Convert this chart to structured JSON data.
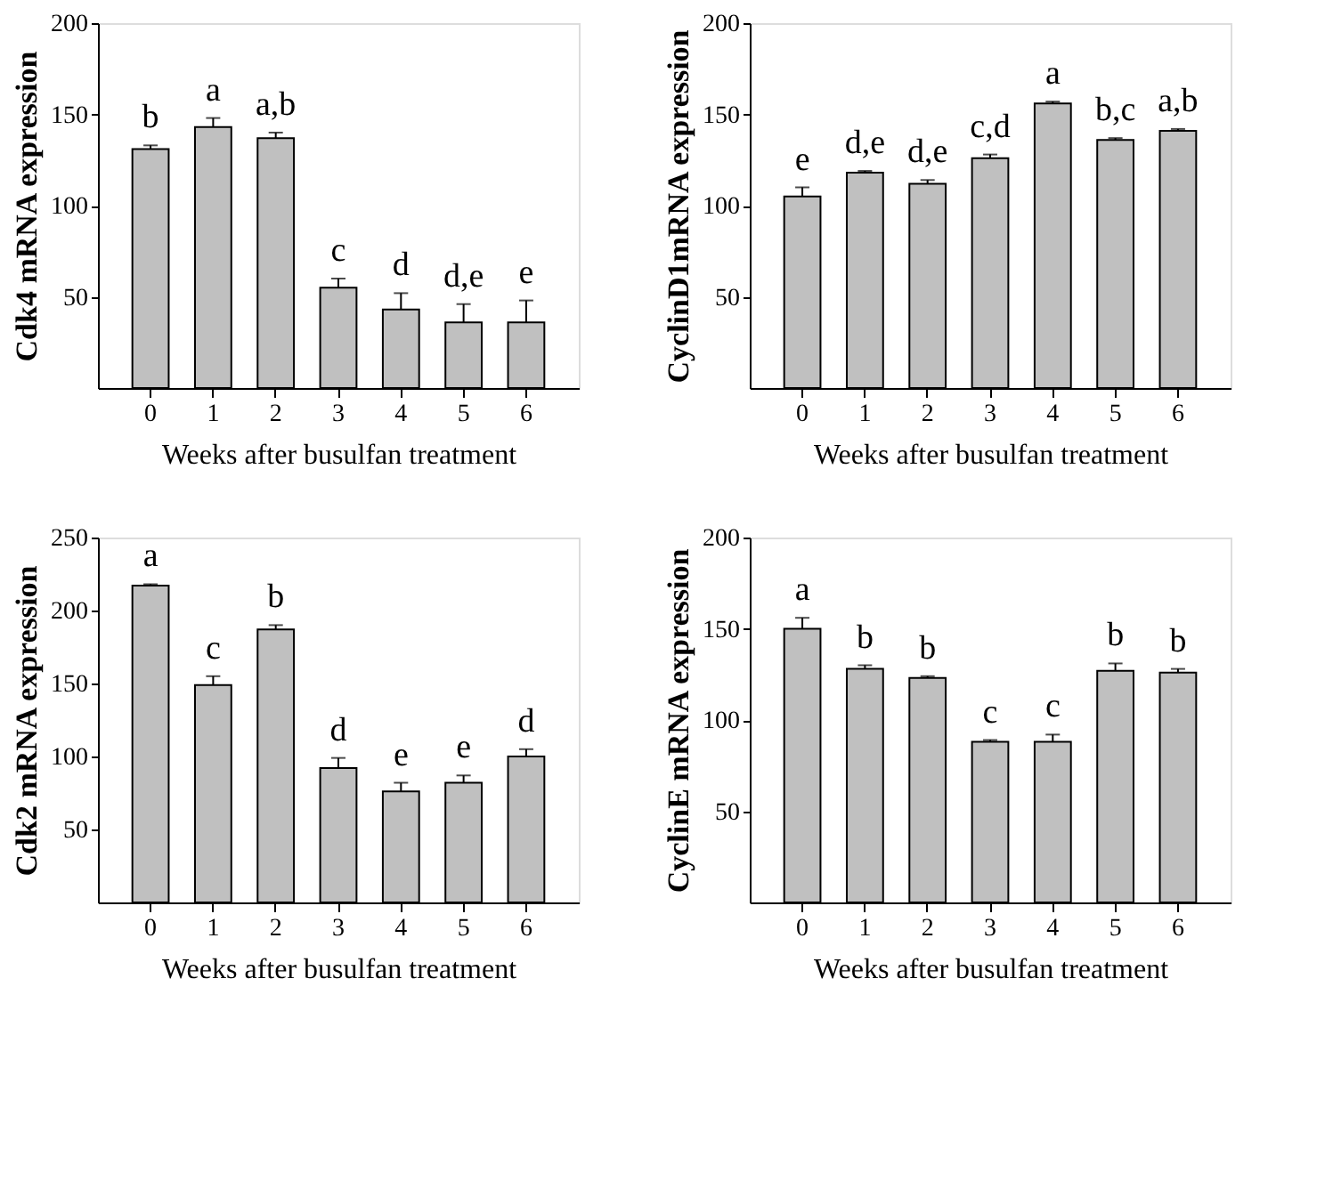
{
  "chart_data": [
    {
      "type": "bar",
      "xlabel": "Weeks after busulfan treatment",
      "ylabel": "Cdk4 mRNA expression",
      "categories": [
        "0",
        "1",
        "2",
        "3",
        "4",
        "5",
        "6"
      ],
      "values": [
        131,
        143,
        137,
        55,
        43,
        36,
        36
      ],
      "color": "#c0c0c0",
      "errors": [
        [
          131,
          133
        ],
        [
          143,
          148
        ],
        [
          137,
          140
        ],
        [
          55,
          60
        ],
        [
          43,
          52
        ],
        [
          36,
          46
        ],
        [
          36,
          48
        ]
      ],
      "ylim": [
        0,
        200
      ],
      "yticks": [
        50,
        100,
        150,
        200
      ],
      "grid": false,
      "annotations": [
        {
          "text": "b",
          "x": "0",
          "y": 133
        },
        {
          "text": "a",
          "x": "1",
          "y": 148
        },
        {
          "text": "a,b",
          "x": "2",
          "y": 140
        },
        {
          "text": "c",
          "x": "3",
          "y": 60
        },
        {
          "text": "d",
          "x": "4",
          "y": 52
        },
        {
          "text": "d,e",
          "x": "5",
          "y": 46
        },
        {
          "text": "e",
          "x": "6",
          "y": 48
        }
      ]
    },
    {
      "type": "bar",
      "xlabel": "Weeks after busulfan treatment",
      "ylabel": "CyclinD1mRNA expression",
      "categories": [
        "0",
        "1",
        "2",
        "3",
        "4",
        "5",
        "6"
      ],
      "values": [
        105,
        118,
        112,
        126,
        156,
        136,
        141
      ],
      "color": "#c0c0c0",
      "errors": [
        [
          105,
          110
        ],
        [
          118,
          119
        ],
        [
          112,
          114
        ],
        [
          126,
          128
        ],
        [
          156,
          157
        ],
        [
          136,
          137
        ],
        [
          141,
          142
        ]
      ],
      "ylim": [
        0,
        200
      ],
      "yticks": [
        50,
        100,
        150,
        200
      ],
      "grid": false,
      "annotations": [
        {
          "text": "e",
          "x": "0",
          "y": 110
        },
        {
          "text": "d,e",
          "x": "1",
          "y": 119
        },
        {
          "text": "d,e",
          "x": "2",
          "y": 114
        },
        {
          "text": "c,d",
          "x": "3",
          "y": 128
        },
        {
          "text": "a",
          "x": "4",
          "y": 157
        },
        {
          "text": "b,c",
          "x": "5",
          "y": 137
        },
        {
          "text": "a,b",
          "x": "6",
          "y": 142
        }
      ]
    },
    {
      "type": "bar",
      "xlabel": "Weeks after busulfan treatment",
      "ylabel": "Cdk2 mRNA expression",
      "categories": [
        "0",
        "1",
        "2",
        "3",
        "4",
        "5",
        "6"
      ],
      "values": [
        217,
        149,
        187,
        92,
        76,
        82,
        100
      ],
      "color": "#c0c0c0",
      "errors": [
        [
          217,
          218
        ],
        [
          149,
          155
        ],
        [
          187,
          190
        ],
        [
          92,
          99
        ],
        [
          76,
          82
        ],
        [
          82,
          87
        ],
        [
          100,
          105
        ]
      ],
      "ylim": [
        0,
        250
      ],
      "yticks": [
        50,
        100,
        150,
        200,
        250
      ],
      "grid": false,
      "annotations": [
        {
          "text": "a",
          "x": "0",
          "y": 218
        },
        {
          "text": "c",
          "x": "1",
          "y": 155
        },
        {
          "text": "b",
          "x": "2",
          "y": 190
        },
        {
          "text": "d",
          "x": "3",
          "y": 99
        },
        {
          "text": "e",
          "x": "4",
          "y": 82
        },
        {
          "text": "e",
          "x": "5",
          "y": 87
        },
        {
          "text": "d",
          "x": "6",
          "y": 105
        }
      ]
    },
    {
      "type": "bar",
      "xlabel": "Weeks after busulfan treatment",
      "ylabel": "CyclinE mRNA expression",
      "categories": [
        "0",
        "1",
        "2",
        "3",
        "4",
        "5",
        "6"
      ],
      "values": [
        150,
        128,
        123,
        88,
        88,
        127,
        126
      ],
      "color": "#c0c0c0",
      "errors": [
        [
          150,
          156
        ],
        [
          128,
          130
        ],
        [
          123,
          124
        ],
        [
          88,
          89
        ],
        [
          88,
          92
        ],
        [
          127,
          131
        ],
        [
          126,
          128
        ]
      ],
      "ylim": [
        0,
        200
      ],
      "yticks": [
        50,
        100,
        150,
        200
      ],
      "grid": false,
      "annotations": [
        {
          "text": "a",
          "x": "0",
          "y": 156
        },
        {
          "text": "b",
          "x": "1",
          "y": 130
        },
        {
          "text": "b",
          "x": "2",
          "y": 124
        },
        {
          "text": "c",
          "x": "3",
          "y": 89
        },
        {
          "text": "c",
          "x": "4",
          "y": 92
        },
        {
          "text": "b",
          "x": "5",
          "y": 131
        },
        {
          "text": "b",
          "x": "6",
          "y": 128
        }
      ]
    }
  ]
}
